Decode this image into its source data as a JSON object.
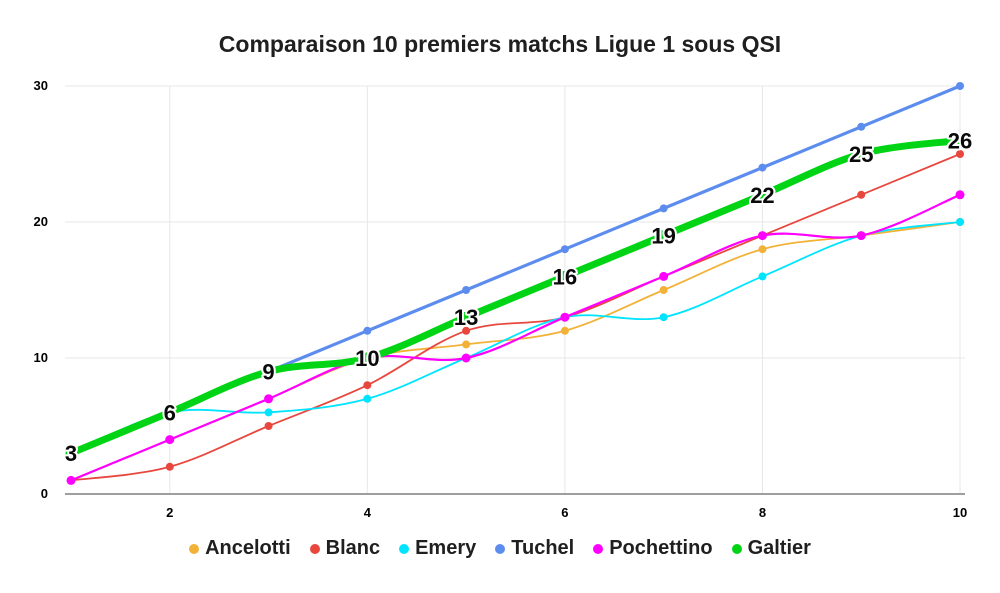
{
  "title": "Comparaison 10 premiers matchs Ligue 1 sous QSI",
  "chart_data": {
    "type": "line",
    "title": "Comparaison 10 premiers matchs Ligue 1 sous QSI",
    "xlabel": "",
    "ylabel": "",
    "x": [
      1,
      2,
      3,
      4,
      5,
      6,
      7,
      8,
      9,
      10
    ],
    "xlim": [
      1,
      10
    ],
    "ylim": [
      0,
      30
    ],
    "xticks": [
      2,
      4,
      6,
      8,
      10
    ],
    "yticks": [
      0,
      10,
      20,
      30
    ],
    "grid": true,
    "legend_position": "bottom",
    "curve": "smooth",
    "series": [
      {
        "name": "Ancelotti",
        "color": "#F2B237",
        "values": [
          1,
          4,
          7,
          10,
          11,
          12,
          15,
          18,
          19,
          20
        ],
        "show_labels": false
      },
      {
        "name": "Blanc",
        "color": "#E8473E",
        "values": [
          1,
          2,
          5,
          8,
          12,
          13,
          16,
          19,
          22,
          25
        ],
        "show_labels": false
      },
      {
        "name": "Emery",
        "color": "#00E4FF",
        "values": [
          3,
          6,
          6,
          7,
          10,
          13,
          13,
          16,
          19,
          20
        ],
        "show_labels": false
      },
      {
        "name": "Tuchel",
        "color": "#5C8DEE",
        "values": [
          3,
          6,
          9,
          12,
          15,
          18,
          21,
          24,
          27,
          30
        ],
        "show_labels": false
      },
      {
        "name": "Pochettino",
        "color": "#FF00FF",
        "values": [
          1,
          4,
          7,
          10,
          10,
          13,
          16,
          19,
          19,
          22
        ],
        "show_labels": false
      },
      {
        "name": "Galtier",
        "color": "#00D415",
        "values": [
          3,
          6,
          9,
          10,
          13,
          16,
          19,
          22,
          25,
          26
        ],
        "show_labels": true
      }
    ],
    "colors": {
      "grid": "#E7E7E7",
      "axis": "#9E9E9E",
      "tick_text": "#000000",
      "background": "#FFFFFF"
    }
  }
}
